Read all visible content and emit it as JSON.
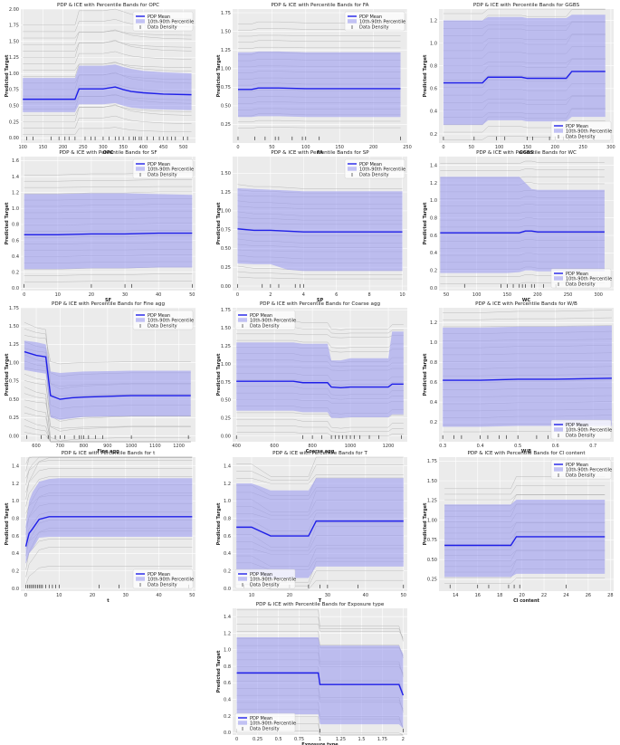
{
  "colors": {
    "panel_bg": "#ebebeb",
    "grid": "#ffffff",
    "band": "#9c9cf0",
    "mean": "#1f1fe8",
    "ice": "#aaaaaa"
  },
  "legend_labels": {
    "mean": "PDP Mean",
    "band": "10th-90th Percentile",
    "density": "Data Density"
  },
  "chart_data": [
    {
      "type": "line",
      "title": "PDP & ICE with Percentile Bands for OPC",
      "xlabel": "OPC",
      "ylabel": "Predicted Target",
      "xlim": [
        95,
        530
      ],
      "ylim": [
        -0.08,
        2.0
      ],
      "xticks": [
        100,
        150,
        200,
        250,
        300,
        350,
        400,
        450,
        500
      ],
      "yticks": [
        0.0,
        0.25,
        0.5,
        0.75,
        1.0,
        1.25,
        1.5,
        1.75,
        2.0
      ],
      "ytick_labels": [
        "0.00",
        "0.25",
        "0.50",
        "0.75",
        "1.00",
        "1.25",
        "1.50",
        "1.75",
        "2.00"
      ],
      "legend_pos": "top-right",
      "x": [
        100,
        150,
        200,
        230,
        240,
        300,
        330,
        350,
        370,
        400,
        450,
        520
      ],
      "mean": [
        0.6,
        0.6,
        0.6,
        0.6,
        0.76,
        0.76,
        0.79,
        0.75,
        0.72,
        0.7,
        0.68,
        0.67
      ],
      "p10": [
        0.4,
        0.4,
        0.4,
        0.4,
        0.52,
        0.52,
        0.54,
        0.5,
        0.47,
        0.45,
        0.44,
        0.43
      ],
      "p90": [
        0.93,
        0.93,
        0.93,
        0.93,
        1.12,
        1.12,
        1.14,
        1.1,
        1.07,
        1.04,
        1.02,
        1.0
      ],
      "ice_low": 0.05,
      "ice_high": 1.75,
      "density": [
        110,
        125,
        170,
        190,
        205,
        215,
        230,
        255,
        270,
        280,
        300,
        315,
        330,
        340,
        350,
        365,
        375,
        380,
        390,
        395,
        410,
        425,
        440,
        450,
        460,
        470,
        480,
        500,
        510
      ]
    },
    {
      "type": "line",
      "title": "PDP & ICE with Percentile Bands for FA",
      "xlabel": "FA",
      "ylabel": "Predicted Target",
      "xlim": [
        -8,
        250
      ],
      "ylim": [
        0.0,
        1.8
      ],
      "xticks": [
        0,
        50,
        100,
        150,
        200,
        250
      ],
      "yticks": [
        0.25,
        0.5,
        0.75,
        1.0,
        1.25,
        1.5,
        1.75
      ],
      "ytick_labels": [
        "0.25",
        "0.50",
        "0.75",
        "1.00",
        "1.25",
        "1.50",
        "1.75"
      ],
      "legend_pos": "top-right",
      "x": [
        0,
        20,
        30,
        60,
        100,
        240
      ],
      "mean": [
        0.72,
        0.72,
        0.74,
        0.74,
        0.73,
        0.73
      ],
      "p10": [
        0.35,
        0.35,
        0.36,
        0.36,
        0.35,
        0.35
      ],
      "p90": [
        1.22,
        1.22,
        1.23,
        1.23,
        1.22,
        1.22
      ],
      "ice_low": 0.2,
      "ice_high": 1.6,
      "density": [
        0,
        25,
        40,
        55,
        60,
        80,
        95,
        100,
        120,
        240
      ]
    },
    {
      "type": "line",
      "title": "PDP & ICE with Percentile Bands for GGBS",
      "xlabel": "GGBS",
      "ylabel": "Predicted Target",
      "xlim": [
        -8,
        305
      ],
      "ylim": [
        0.12,
        1.3
      ],
      "xticks": [
        0,
        50,
        100,
        150,
        200,
        250,
        300
      ],
      "yticks": [
        0.2,
        0.4,
        0.6,
        0.8,
        1.0,
        1.2
      ],
      "ytick_labels": [
        "0.2",
        "0.4",
        "0.6",
        "0.8",
        "1.0",
        "1.2"
      ],
      "legend_pos": "bottom-right",
      "x": [
        0,
        70,
        80,
        140,
        150,
        220,
        230,
        290
      ],
      "mean": [
        0.65,
        0.65,
        0.7,
        0.7,
        0.69,
        0.69,
        0.75,
        0.75
      ],
      "p10": [
        0.28,
        0.28,
        0.32,
        0.32,
        0.31,
        0.31,
        0.35,
        0.35
      ],
      "p90": [
        1.2,
        1.2,
        1.23,
        1.23,
        1.22,
        1.22,
        1.25,
        1.25
      ],
      "ice_low": 0.15,
      "ice_high": 1.26,
      "density": [
        0,
        55,
        95,
        110,
        150,
        160,
        190,
        200,
        215,
        225,
        250,
        270
      ]
    },
    {
      "type": "line",
      "title": "PDP & ICE with Percentile Bands for SF",
      "xlabel": "SF",
      "ylabel": "Predicted Target",
      "xlim": [
        -1,
        51
      ],
      "ylim": [
        -0.03,
        1.65
      ],
      "xticks": [
        0,
        10,
        20,
        30,
        40,
        50
      ],
      "yticks": [
        0.0,
        0.2,
        0.4,
        0.6,
        0.8,
        1.0,
        1.2,
        1.4,
        1.6
      ],
      "ytick_labels": [
        "0.0",
        "0.2",
        "0.4",
        "0.6",
        "0.8",
        "1.0",
        "1.2",
        "1.4",
        "1.6"
      ],
      "legend_pos": "top-right",
      "x": [
        0,
        10,
        20,
        30,
        40,
        50
      ],
      "mean": [
        0.67,
        0.67,
        0.68,
        0.68,
        0.69,
        0.69
      ],
      "p10": [
        0.24,
        0.24,
        0.25,
        0.25,
        0.26,
        0.26
      ],
      "p90": [
        1.18,
        1.18,
        1.19,
        1.19,
        1.18,
        1.17
      ],
      "ice_low": 0.08,
      "ice_high": 1.42,
      "density": [
        0,
        20,
        30,
        32,
        50
      ]
    },
    {
      "type": "line",
      "title": "PDP & ICE with Percentile Bands for SP",
      "xlabel": "SP",
      "ylabel": "Predicted Target",
      "xlim": [
        -0.3,
        10.3
      ],
      "ylim": [
        -0.06,
        1.72
      ],
      "xticks": [
        0,
        2,
        4,
        6,
        8,
        10
      ],
      "yticks": [
        0.0,
        0.25,
        0.5,
        0.75,
        1.0,
        1.25,
        1.5
      ],
      "ytick_labels": [
        "0.00",
        "0.25",
        "0.50",
        "0.75",
        "1.00",
        "1.25",
        "1.50"
      ],
      "legend_pos": "top-right",
      "x": [
        0,
        1,
        2,
        3,
        4,
        5,
        10
      ],
      "mean": [
        0.76,
        0.74,
        0.74,
        0.73,
        0.72,
        0.72,
        0.72
      ],
      "p10": [
        0.3,
        0.29,
        0.29,
        0.22,
        0.2,
        0.2,
        0.2
      ],
      "p90": [
        1.3,
        1.29,
        1.28,
        1.27,
        1.26,
        1.26,
        1.26
      ],
      "ice_low": 0.12,
      "ice_high": 1.35,
      "density": [
        0,
        1.5,
        2,
        2.5,
        3.5,
        3.8,
        4
      ]
    },
    {
      "type": "line",
      "title": "PDP & ICE with Percentile Bands for WC",
      "xlabel": "WC",
      "ylabel": "Predicted Target",
      "xlim": [
        38,
        325
      ],
      "ylim": [
        -0.03,
        1.5
      ],
      "xticks": [
        50,
        100,
        150,
        200,
        250,
        300
      ],
      "yticks": [
        0.0,
        0.2,
        0.4,
        0.6,
        0.8,
        1.0,
        1.2,
        1.4
      ],
      "ytick_labels": [
        "0.0",
        "0.2",
        "0.4",
        "0.6",
        "0.8",
        "1.0",
        "1.2",
        "1.4"
      ],
      "legend_pos": "bottom-right",
      "x": [
        40,
        100,
        150,
        170,
        180,
        190,
        200,
        310
      ],
      "mean": [
        0.63,
        0.63,
        0.63,
        0.63,
        0.65,
        0.65,
        0.64,
        0.64
      ],
      "p10": [
        0.17,
        0.17,
        0.17,
        0.18,
        0.2,
        0.2,
        0.19,
        0.19
      ],
      "p90": [
        1.27,
        1.27,
        1.27,
        1.27,
        1.2,
        1.13,
        1.12,
        1.12
      ],
      "ice_low": 0.05,
      "ice_high": 1.42,
      "density": [
        80,
        140,
        150,
        160,
        170,
        175,
        180,
        190,
        195,
        210,
        230
      ]
    },
    {
      "type": "line",
      "title": "PDP & ICE with Percentile Bands for Fine agg",
      "xlabel": "Fine agg",
      "ylabel": "Predicted Target",
      "xlim": [
        535,
        1270
      ],
      "ylim": [
        -0.08,
        1.75
      ],
      "xticks": [
        600,
        700,
        800,
        900,
        1000,
        1100,
        1200
      ],
      "yticks": [
        0.0,
        0.25,
        0.5,
        0.75,
        1.0,
        1.25,
        1.5,
        1.75
      ],
      "ytick_labels": [
        "0.00",
        "0.25",
        "0.50",
        "0.75",
        "1.00",
        "1.25",
        "1.50",
        "1.75"
      ],
      "legend_pos": "top-right",
      "x": [
        550,
        600,
        640,
        660,
        700,
        750,
        800,
        1000,
        1250
      ],
      "mean": [
        1.15,
        1.1,
        1.08,
        0.55,
        0.5,
        0.52,
        0.53,
        0.55,
        0.55
      ],
      "p10": [
        0.9,
        0.87,
        0.85,
        0.25,
        0.22,
        0.24,
        0.26,
        0.27,
        0.27
      ],
      "p90": [
        1.3,
        1.28,
        1.25,
        0.88,
        0.86,
        0.87,
        0.88,
        0.89,
        0.89
      ],
      "ice_low": 0.05,
      "ice_high": 1.55,
      "density": [
        560,
        620,
        650,
        680,
        700,
        720,
        760,
        780,
        790,
        800,
        820,
        850,
        880,
        1000,
        1240
      ]
    },
    {
      "type": "line",
      "title": "PDP & ICE with Percentile Bands for Coarse agg",
      "xlabel": "Coarse agg",
      "ylabel": "Predicted Target",
      "xlim": [
        380,
        1300
      ],
      "ylim": [
        -0.08,
        1.78
      ],
      "xticks": [
        400,
        600,
        800,
        1000,
        1200
      ],
      "yticks": [
        0.0,
        0.25,
        0.5,
        0.75,
        1.0,
        1.25,
        1.5,
        1.75
      ],
      "ytick_labels": [
        "0.00",
        "0.25",
        "0.50",
        "0.75",
        "1.00",
        "1.25",
        "1.50",
        "1.75"
      ],
      "legend_pos": "top-left",
      "x": [
        400,
        700,
        750,
        880,
        900,
        950,
        1000,
        1200,
        1220,
        1280
      ],
      "mean": [
        0.76,
        0.76,
        0.74,
        0.74,
        0.68,
        0.67,
        0.68,
        0.68,
        0.72,
        0.72
      ],
      "p10": [
        0.35,
        0.35,
        0.33,
        0.33,
        0.25,
        0.25,
        0.26,
        0.26,
        0.3,
        0.3
      ],
      "p90": [
        1.3,
        1.3,
        1.28,
        1.28,
        1.05,
        1.05,
        1.08,
        1.08,
        1.45,
        1.45
      ],
      "ice_low": 0.05,
      "ice_high": 1.6,
      "density": [
        400,
        750,
        800,
        850,
        900,
        920,
        940,
        960,
        980,
        1000,
        1020,
        1050,
        1100,
        1150,
        1270
      ]
    },
    {
      "type": "line",
      "title": "PDP & ICE with Percentile Bands for W/B",
      "xlabel": "W/B",
      "ylabel": "Predicted Target",
      "xlim": [
        0.29,
        0.755
      ],
      "ylim": [
        0.0,
        1.35
      ],
      "xticks": [
        0.3,
        0.4,
        0.5,
        0.6,
        0.7
      ],
      "yticks": [
        0.2,
        0.4,
        0.6,
        0.8,
        1.0,
        1.2
      ],
      "ytick_labels": [
        "0.2",
        "0.4",
        "0.6",
        "0.8",
        "1.0",
        "1.2"
      ],
      "legend_pos": "bottom-right",
      "x": [
        0.3,
        0.4,
        0.5,
        0.6,
        0.75
      ],
      "mean": [
        0.62,
        0.62,
        0.63,
        0.63,
        0.64
      ],
      "p10": [
        0.15,
        0.15,
        0.16,
        0.16,
        0.16
      ],
      "p90": [
        1.15,
        1.15,
        1.16,
        1.16,
        1.17
      ],
      "ice_low": 0.1,
      "ice_high": 1.3,
      "density": [
        0.3,
        0.33,
        0.35,
        0.4,
        0.42,
        0.45,
        0.47,
        0.5,
        0.55,
        0.58
      ]
    },
    {
      "type": "line",
      "title": "PDP & ICE with Percentile Bands for t",
      "xlabel": "t",
      "ylabel": "Predicted Target",
      "xlim": [
        -1.5,
        51
      ],
      "ylim": [
        -0.03,
        1.5
      ],
      "xticks": [
        0,
        10,
        20,
        30,
        40,
        50
      ],
      "yticks": [
        0.0,
        0.2,
        0.4,
        0.6,
        0.8,
        1.0,
        1.2,
        1.4
      ],
      "ytick_labels": [
        "0.0",
        "0.2",
        "0.4",
        "0.6",
        "0.8",
        "1.0",
        "1.2",
        "1.4"
      ],
      "legend_pos": "bottom-right",
      "x": [
        0,
        1,
        2,
        4,
        7,
        10,
        20,
        50
      ],
      "mean": [
        0.48,
        0.63,
        0.68,
        0.79,
        0.82,
        0.82,
        0.82,
        0.82
      ],
      "p10": [
        0.28,
        0.4,
        0.45,
        0.58,
        0.59,
        0.59,
        0.59,
        0.59
      ],
      "p90": [
        0.72,
        1.0,
        1.1,
        1.22,
        1.25,
        1.26,
        1.26,
        1.26
      ],
      "ice_low": 0.05,
      "ice_high": 1.42,
      "density": [
        0,
        0.5,
        1,
        1.5,
        2,
        2.5,
        3,
        3.5,
        4,
        4.5,
        5,
        6,
        7,
        8,
        9,
        10,
        22,
        28,
        49
      ]
    },
    {
      "type": "line",
      "title": "PDP & ICE with Percentile Bands for T",
      "xlabel": "T",
      "ylabel": "Predicted Target",
      "xlim": [
        5,
        51
      ],
      "ylim": [
        -0.03,
        1.5
      ],
      "xticks": [
        10,
        20,
        30,
        40,
        50
      ],
      "yticks": [
        0.0,
        0.2,
        0.4,
        0.6,
        0.8,
        1.0,
        1.2,
        1.4
      ],
      "ytick_labels": [
        "0.0",
        "0.2",
        "0.4",
        "0.6",
        "0.8",
        "1.0",
        "1.2",
        "1.4"
      ],
      "legend_pos": "bottom-left",
      "x": [
        6,
        10,
        12,
        15,
        20,
        25,
        27,
        50
      ],
      "mean": [
        0.7,
        0.7,
        0.66,
        0.6,
        0.6,
        0.6,
        0.77,
        0.77
      ],
      "p10": [
        0.18,
        0.18,
        0.15,
        0.12,
        0.12,
        0.12,
        0.25,
        0.25
      ],
      "p90": [
        1.2,
        1.2,
        1.17,
        1.12,
        1.12,
        1.12,
        1.26,
        1.26
      ],
      "ice_low": 0.05,
      "ice_high": 1.42,
      "density": [
        8,
        10,
        15,
        20,
        25,
        28,
        30,
        38,
        50
      ]
    },
    {
      "type": "line",
      "title": "PDP & ICE with Percentile Bands for Cl content",
      "xlabel": "Cl content",
      "ylabel": "Predicted Target",
      "xlim": [
        12.5,
        28.3
      ],
      "ylim": [
        0.1,
        1.8
      ],
      "xticks": [
        14,
        16,
        18,
        20,
        22,
        24,
        26,
        28
      ],
      "yticks": [
        0.25,
        0.5,
        0.75,
        1.0,
        1.25,
        1.5,
        1.75
      ],
      "ytick_labels": [
        "0.25",
        "0.50",
        "0.75",
        "1.00",
        "1.25",
        "1.50",
        "1.75"
      ],
      "legend_pos": "top-right",
      "x": [
        13,
        19,
        19.5,
        20,
        27.5
      ],
      "mean": [
        0.68,
        0.68,
        0.79,
        0.79,
        0.79
      ],
      "p10": [
        0.28,
        0.28,
        0.32,
        0.32,
        0.32
      ],
      "p90": [
        1.2,
        1.2,
        1.26,
        1.26,
        1.26
      ],
      "ice_low": 0.2,
      "ice_high": 1.4,
      "density": [
        13.5,
        16,
        17,
        18.8,
        19.3,
        19.8,
        24
      ]
    },
    {
      "type": "line",
      "title": "PDP & ICE with Percentile Bands for Exposure type",
      "xlabel": "Exposure type",
      "ylabel": "Predicted Target",
      "xlim": [
        -0.05,
        2.05
      ],
      "ylim": [
        -0.03,
        1.5
      ],
      "xticks": [
        0.0,
        0.25,
        0.5,
        0.75,
        1.0,
        1.25,
        1.5,
        1.75,
        2.0
      ],
      "yticks": [
        0.0,
        0.2,
        0.4,
        0.6,
        0.8,
        1.0,
        1.2,
        1.4
      ],
      "ytick_labels": [
        "0.0",
        "0.2",
        "0.4",
        "0.6",
        "0.8",
        "1.0",
        "1.2",
        "1.4"
      ],
      "legend_pos": "bottom-left",
      "x": [
        0,
        0.98,
        1.0,
        1.95,
        2.0
      ],
      "mean": [
        0.72,
        0.72,
        0.58,
        0.58,
        0.45
      ],
      "p10": [
        0.22,
        0.22,
        0.1,
        0.1,
        0.05
      ],
      "p90": [
        1.15,
        1.15,
        1.05,
        1.05,
        0.95
      ],
      "ice_low": 0.02,
      "ice_high": 1.48,
      "density": [
        0,
        1,
        2
      ]
    }
  ]
}
